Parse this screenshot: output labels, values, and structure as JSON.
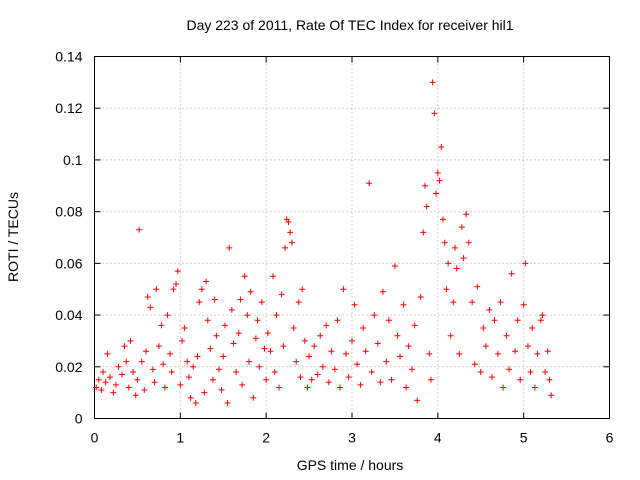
{
  "chart_data": {
    "type": "scatter",
    "title": "Day 223 of 2011, Rate Of TEC Index for receiver hil1",
    "xlabel": "GPS time / hours",
    "ylabel": "ROTI / TECUs",
    "xlim": [
      0,
      6
    ],
    "ylim": [
      0,
      0.14
    ],
    "x_ticks": [
      "0",
      "1",
      "2",
      "3",
      "4",
      "5",
      "6"
    ],
    "y_ticks": [
      "0",
      "0.02",
      "0.04",
      "0.06",
      "0.08",
      "0.1",
      "0.12",
      "0.14"
    ],
    "grid": true,
    "marker": "+",
    "series_color": "#ff0000",
    "series": [
      {
        "name": "hil1 ROTI",
        "points": [
          [
            0.02,
            0.012
          ],
          [
            0.05,
            0.015
          ],
          [
            0.08,
            0.011
          ],
          [
            0.1,
            0.018
          ],
          [
            0.13,
            0.014
          ],
          [
            0.15,
            0.025
          ],
          [
            0.18,
            0.016
          ],
          [
            0.22,
            0.01
          ],
          [
            0.25,
            0.013
          ],
          [
            0.28,
            0.02
          ],
          [
            0.32,
            0.017
          ],
          [
            0.35,
            0.028
          ],
          [
            0.37,
            0.022
          ],
          [
            0.4,
            0.012
          ],
          [
            0.42,
            0.03
          ],
          [
            0.45,
            0.018
          ],
          [
            0.48,
            0.009
          ],
          [
            0.5,
            0.015
          ],
          [
            0.52,
            0.073
          ],
          [
            0.55,
            0.022
          ],
          [
            0.58,
            0.011
          ],
          [
            0.6,
            0.026
          ],
          [
            0.62,
            0.047
          ],
          [
            0.65,
            0.043
          ],
          [
            0.68,
            0.019
          ],
          [
            0.7,
            0.014
          ],
          [
            0.72,
            0.05
          ],
          [
            0.75,
            0.028
          ],
          [
            0.78,
            0.036
          ],
          [
            0.8,
            0.021
          ],
          [
            0.82,
            0.012
          ],
          [
            0.85,
            0.04
          ],
          [
            0.88,
            0.025
          ],
          [
            0.9,
            0.018
          ],
          [
            0.92,
            0.05
          ],
          [
            0.95,
            0.052
          ],
          [
            0.97,
            0.057
          ],
          [
            1.0,
            0.013
          ],
          [
            1.02,
            0.03
          ],
          [
            1.05,
            0.035
          ],
          [
            1.08,
            0.022
          ],
          [
            1.1,
            0.016
          ],
          [
            1.12,
            0.008
          ],
          [
            1.15,
            0.02
          ],
          [
            1.18,
            0.006
          ],
          [
            1.2,
            0.024
          ],
          [
            1.22,
            0.045
          ],
          [
            1.25,
            0.05
          ],
          [
            1.28,
            0.01
          ],
          [
            1.3,
            0.053
          ],
          [
            1.32,
            0.038
          ],
          [
            1.35,
            0.027
          ],
          [
            1.38,
            0.015
          ],
          [
            1.4,
            0.046
          ],
          [
            1.42,
            0.032
          ],
          [
            1.45,
            0.019
          ],
          [
            1.48,
            0.011
          ],
          [
            1.5,
            0.024
          ],
          [
            1.52,
            0.036
          ],
          [
            1.55,
            0.006
          ],
          [
            1.57,
            0.066
          ],
          [
            1.6,
            0.042
          ],
          [
            1.62,
            0.029
          ],
          [
            1.65,
            0.018
          ],
          [
            1.68,
            0.033
          ],
          [
            1.7,
            0.046
          ],
          [
            1.72,
            0.013
          ],
          [
            1.75,
            0.055
          ],
          [
            1.78,
            0.04
          ],
          [
            1.8,
            0.022
          ],
          [
            1.82,
            0.049
          ],
          [
            1.85,
            0.008
          ],
          [
            1.88,
            0.031
          ],
          [
            1.9,
            0.038
          ],
          [
            1.92,
            0.02
          ],
          [
            1.95,
            0.045
          ],
          [
            1.98,
            0.027
          ],
          [
            2.0,
            0.015
          ],
          [
            2.02,
            0.033
          ],
          [
            2.05,
            0.026
          ],
          [
            2.08,
            0.055
          ],
          [
            2.1,
            0.018
          ],
          [
            2.12,
            0.04
          ],
          [
            2.15,
            0.012
          ],
          [
            2.18,
            0.048
          ],
          [
            2.2,
            0.028
          ],
          [
            2.22,
            0.066
          ],
          [
            2.24,
            0.077
          ],
          [
            2.26,
            0.076
          ],
          [
            2.28,
            0.072
          ],
          [
            2.3,
            0.068
          ],
          [
            2.32,
            0.035
          ],
          [
            2.35,
            0.022
          ],
          [
            2.38,
            0.045
          ],
          [
            2.4,
            0.016
          ],
          [
            2.42,
            0.05
          ],
          [
            2.45,
            0.03
          ],
          [
            2.48,
            0.012
          ],
          [
            2.5,
            0.024
          ],
          [
            2.53,
            0.015
          ],
          [
            2.56,
            0.028
          ],
          [
            2.6,
            0.017
          ],
          [
            2.63,
            0.032
          ],
          [
            2.66,
            0.02
          ],
          [
            2.7,
            0.036
          ],
          [
            2.73,
            0.014
          ],
          [
            2.76,
            0.026
          ],
          [
            2.8,
            0.019
          ],
          [
            2.83,
            0.038
          ],
          [
            2.86,
            0.012
          ],
          [
            2.9,
            0.05
          ],
          [
            2.93,
            0.025
          ],
          [
            2.96,
            0.016
          ],
          [
            3.0,
            0.03
          ],
          [
            3.03,
            0.044
          ],
          [
            3.06,
            0.021
          ],
          [
            3.1,
            0.013
          ],
          [
            3.13,
            0.035
          ],
          [
            3.16,
            0.026
          ],
          [
            3.2,
            0.091
          ],
          [
            3.23,
            0.018
          ],
          [
            3.26,
            0.04
          ],
          [
            3.3,
            0.029
          ],
          [
            3.33,
            0.014
          ],
          [
            3.36,
            0.049
          ],
          [
            3.4,
            0.022
          ],
          [
            3.43,
            0.038
          ],
          [
            3.46,
            0.015
          ],
          [
            3.5,
            0.059
          ],
          [
            3.53,
            0.032
          ],
          [
            3.56,
            0.024
          ],
          [
            3.6,
            0.044
          ],
          [
            3.63,
            0.012
          ],
          [
            3.66,
            0.028
          ],
          [
            3.7,
            0.019
          ],
          [
            3.73,
            0.036
          ],
          [
            3.76,
            0.007
          ],
          [
            3.8,
            0.047
          ],
          [
            3.83,
            0.072
          ],
          [
            3.85,
            0.09
          ],
          [
            3.87,
            0.082
          ],
          [
            3.9,
            0.025
          ],
          [
            3.92,
            0.015
          ],
          [
            3.94,
            0.13
          ],
          [
            3.96,
            0.118
          ],
          [
            3.98,
            0.087
          ],
          [
            4.0,
            0.095
          ],
          [
            4.02,
            0.092
          ],
          [
            4.04,
            0.105
          ],
          [
            4.06,
            0.077
          ],
          [
            4.08,
            0.068
          ],
          [
            4.1,
            0.05
          ],
          [
            4.12,
            0.06
          ],
          [
            4.15,
            0.032
          ],
          [
            4.18,
            0.045
          ],
          [
            4.2,
            0.066
          ],
          [
            4.22,
            0.058
          ],
          [
            4.25,
            0.025
          ],
          [
            4.28,
            0.074
          ],
          [
            4.3,
            0.062
          ],
          [
            4.33,
            0.079
          ],
          [
            4.36,
            0.068
          ],
          [
            4.4,
            0.045
          ],
          [
            4.43,
            0.021
          ],
          [
            4.46,
            0.051
          ],
          [
            4.5,
            0.018
          ],
          [
            4.53,
            0.035
          ],
          [
            4.56,
            0.028
          ],
          [
            4.6,
            0.042
          ],
          [
            4.63,
            0.016
          ],
          [
            4.66,
            0.038
          ],
          [
            4.7,
            0.025
          ],
          [
            4.73,
            0.045
          ],
          [
            4.76,
            0.012
          ],
          [
            4.8,
            0.032
          ],
          [
            4.83,
            0.019
          ],
          [
            4.86,
            0.056
          ],
          [
            4.9,
            0.026
          ],
          [
            4.93,
            0.038
          ],
          [
            4.96,
            0.015
          ],
          [
            5.0,
            0.044
          ],
          [
            5.02,
            0.06
          ],
          [
            5.05,
            0.028
          ],
          [
            5.08,
            0.018
          ],
          [
            5.1,
            0.035
          ],
          [
            5.13,
            0.012
          ],
          [
            5.16,
            0.025
          ],
          [
            5.2,
            0.038
          ],
          [
            5.22,
            0.04
          ],
          [
            5.25,
            0.018
          ],
          [
            5.28,
            0.026
          ],
          [
            5.3,
            0.015
          ],
          [
            5.32,
            0.009
          ]
        ]
      }
    ]
  }
}
